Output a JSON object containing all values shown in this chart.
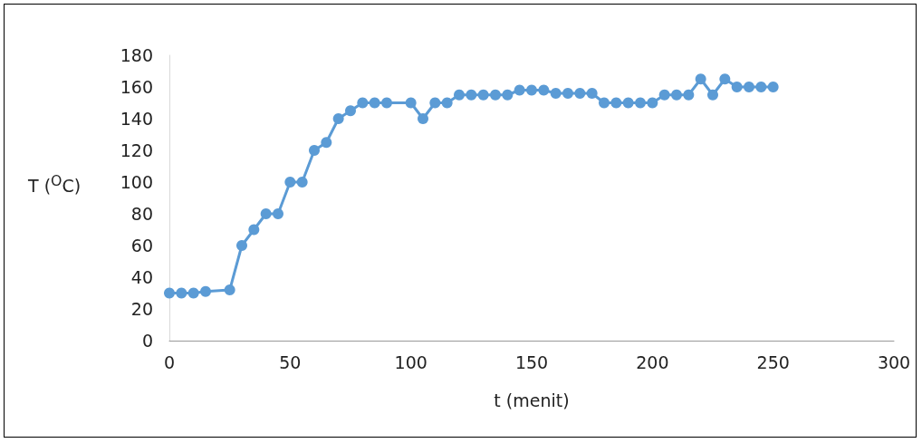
{
  "chart_data": {
    "type": "line",
    "xlabel": "t (menit)",
    "ylabel": "T ($^{O}$C)",
    "x": [
      0,
      5,
      10,
      15,
      25,
      30,
      35,
      40,
      45,
      50,
      55,
      60,
      65,
      70,
      75,
      80,
      85,
      90,
      100,
      105,
      110,
      115,
      120,
      125,
      130,
      135,
      140,
      145,
      150,
      155,
      160,
      165,
      170,
      175,
      180,
      185,
      190,
      195,
      200,
      205,
      210,
      215,
      220,
      225,
      230,
      235,
      240,
      245,
      250
    ],
    "series": [
      {
        "color": "#5b9bd5",
        "values": [
          30,
          30,
          30,
          31,
          32,
          60,
          70,
          80,
          80,
          100,
          100,
          120,
          125,
          140,
          145,
          150,
          150,
          150,
          150,
          140,
          150,
          150,
          155,
          155,
          155,
          155,
          155,
          158,
          158,
          158,
          156,
          156,
          156,
          156,
          150,
          150,
          150,
          150,
          150,
          155,
          155,
          155,
          165,
          155,
          165,
          160,
          160,
          160,
          160
        ]
      }
    ],
    "xlim": [
      0,
      300
    ],
    "xticks": [
      0,
      50,
      100,
      150,
      200,
      250,
      300
    ],
    "ylim": [
      0,
      180
    ],
    "yticks": [
      0,
      20,
      40,
      60,
      80,
      100,
      120,
      140,
      160,
      180
    ],
    "grid": false,
    "marker": "circle",
    "line_style": "solid"
  }
}
